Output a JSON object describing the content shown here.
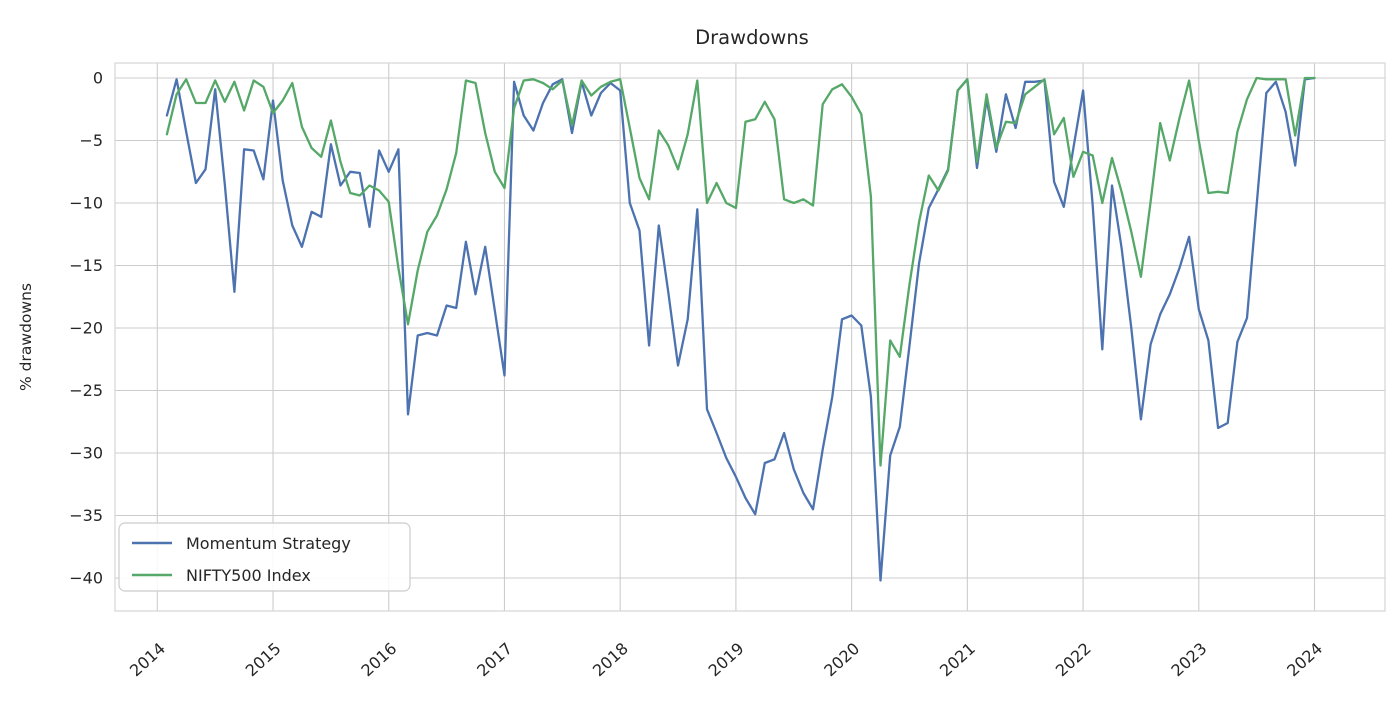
{
  "chart_data": {
    "type": "line",
    "title": "Drawdowns",
    "xlabel": "",
    "ylabel": "% drawdowns",
    "x_unit": "monthly",
    "x_start": "2014-01",
    "x_end": "2023-12",
    "xlim_years": [
      2013.63,
      2024.61
    ],
    "ylim": [
      -42.6,
      1.2
    ],
    "grid": true,
    "grid_color": "#cccccc",
    "spine_color": "#d6d6d6",
    "background_color": "#ffffff",
    "text_color": "#262626",
    "legend_position": "lower left",
    "x_tick_labels": [
      "2014",
      "2015",
      "2016",
      "2017",
      "2018",
      "2019",
      "2020",
      "2021",
      "2022",
      "2023",
      "2024"
    ],
    "y_tick_values": [
      0,
      -5,
      -10,
      -15,
      -20,
      -25,
      -30,
      -35,
      -40
    ],
    "y_tick_labels": [
      "0",
      "−5",
      "−10",
      "−15",
      "−20",
      "−25",
      "−30",
      "−35",
      "−40"
    ],
    "series": [
      {
        "name": "Momentum Strategy",
        "color": "#4C72B0",
        "values": [
          -3.0,
          -0.1,
          -4.3,
          -8.4,
          -7.3,
          -0.9,
          -8.5,
          -17.1,
          -5.7,
          -5.8,
          -8.1,
          -1.8,
          -8.2,
          -11.8,
          -13.5,
          -10.7,
          -11.1,
          -5.3,
          -8.6,
          -7.5,
          -7.6,
          -11.9,
          -5.8,
          -7.5,
          -5.7,
          -26.9,
          -20.6,
          -20.4,
          -20.6,
          -18.2,
          -18.4,
          -13.1,
          -17.3,
          -13.5,
          -18.6,
          -23.8,
          -0.3,
          -3.0,
          -4.2,
          -2.0,
          -0.5,
          -0.1,
          -4.4,
          -0.3,
          -3.0,
          -1.2,
          -0.4,
          -1.0,
          -10.0,
          -12.2,
          -21.4,
          -11.8,
          -17.2,
          -23.0,
          -19.3,
          -10.5,
          -26.5,
          -28.4,
          -30.4,
          -31.9,
          -33.6,
          -34.9,
          -30.8,
          -30.5,
          -28.4,
          -31.3,
          -33.2,
          -34.5,
          -29.7,
          -25.5,
          -19.3,
          -19.0,
          -19.8,
          -25.5,
          -40.2,
          -30.2,
          -27.9,
          -21.4,
          -14.8,
          -10.4,
          -8.9,
          -7.3,
          -1.0,
          -0.1,
          -7.2,
          -1.7,
          -5.9,
          -1.3,
          -4.0,
          -0.3,
          -0.3,
          -0.2,
          -8.3,
          -10.3,
          -5.6,
          -1.0,
          -10.2,
          -21.7,
          -8.6,
          -13.6,
          -20.0,
          -27.3,
          -21.3,
          -18.9,
          -17.3,
          -15.2,
          -12.7,
          -18.5,
          -21.0,
          -28.0,
          -27.6,
          -21.1,
          -19.2,
          -10.2,
          -1.2,
          -0.3,
          -2.7,
          -7.0,
          -0.1,
          0.0
        ]
      },
      {
        "name": "NIFTY500 Index",
        "color": "#55A868",
        "values": [
          -4.5,
          -1.3,
          -0.1,
          -2.0,
          -2.0,
          -0.2,
          -1.9,
          -0.3,
          -2.6,
          -0.2,
          -0.7,
          -2.8,
          -1.8,
          -0.4,
          -3.9,
          -5.6,
          -6.3,
          -3.4,
          -6.7,
          -9.2,
          -9.4,
          -8.6,
          -9.0,
          -9.9,
          -15.2,
          -19.7,
          -15.4,
          -12.3,
          -11.0,
          -8.9,
          -6.0,
          -0.2,
          -0.4,
          -4.4,
          -7.5,
          -8.8,
          -2.4,
          -0.2,
          -0.1,
          -0.4,
          -0.9,
          -0.2,
          -3.8,
          -0.2,
          -1.4,
          -0.7,
          -0.3,
          -0.1,
          -4.0,
          -8.0,
          -9.7,
          -4.2,
          -5.4,
          -7.3,
          -4.5,
          -0.2,
          -10.0,
          -8.4,
          -10.0,
          -10.4,
          -3.5,
          -3.3,
          -1.9,
          -3.3,
          -9.7,
          -10.0,
          -9.7,
          -10.2,
          -2.1,
          -0.9,
          -0.5,
          -1.5,
          -2.9,
          -9.5,
          -31.0,
          -21.0,
          -22.3,
          -16.5,
          -11.5,
          -7.8,
          -9.0,
          -7.4,
          -1.0,
          -0.1,
          -6.7,
          -1.3,
          -5.6,
          -3.5,
          -3.6,
          -1.3,
          -0.7,
          -0.1,
          -4.5,
          -3.2,
          -7.9,
          -5.9,
          -6.2,
          -10.0,
          -6.4,
          -9.1,
          -12.3,
          -15.9,
          -9.9,
          -3.6,
          -6.6,
          -3.2,
          -0.2,
          -5.0,
          -9.2,
          -9.1,
          -9.2,
          -4.3,
          -1.7,
          0.0,
          -0.1,
          -0.1,
          -0.1,
          -4.6,
          0.0,
          0.0
        ]
      }
    ]
  }
}
